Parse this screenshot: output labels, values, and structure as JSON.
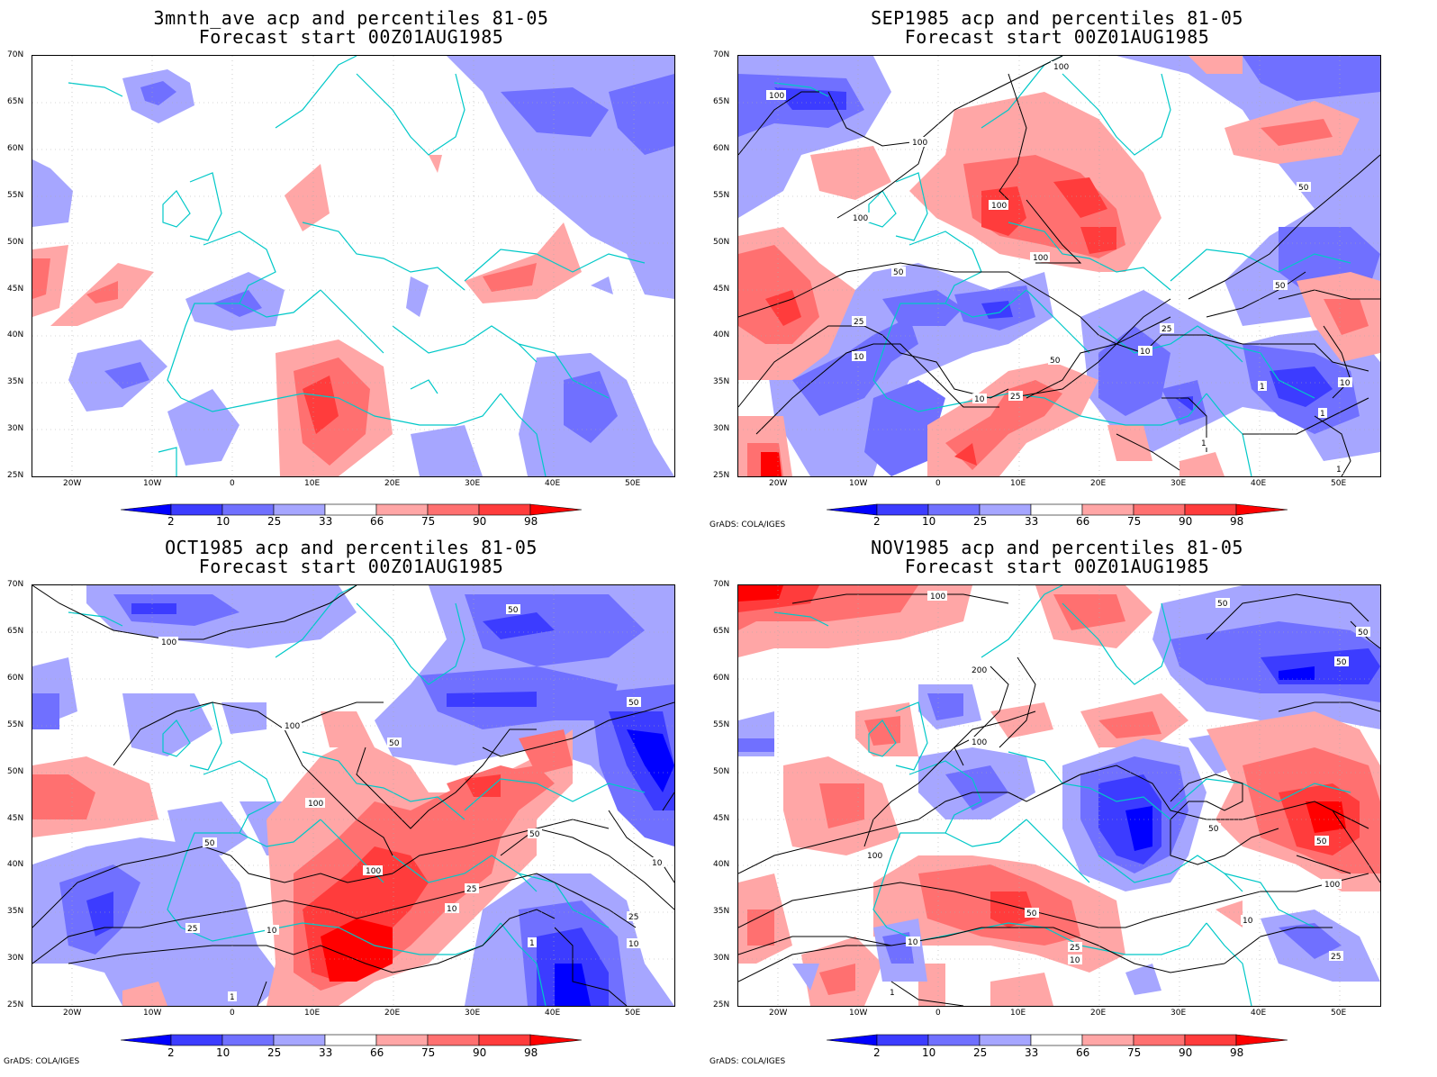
{
  "panels": [
    {
      "title1": "3mnth_ave acp and percentiles 81-05",
      "title2": "Forecast start 00Z01AUG1985",
      "credit": ""
    },
    {
      "title1": "SEP1985 acp and percentiles 81-05",
      "title2": "Forecast start 00Z01AUG1985",
      "credit": "GrADS: COLA/IGES"
    },
    {
      "title1": "OCT1985 acp and percentiles 81-05",
      "title2": "Forecast start 00Z01AUG1985",
      "credit": "GrADS: COLA/IGES"
    },
    {
      "title1": "NOV1985 acp and percentiles 81-05",
      "title2": "Forecast start 00Z01AUG1985",
      "credit": "GrADS: COLA/IGES"
    }
  ],
  "axes": {
    "lat_labels": [
      "70N",
      "65N",
      "60N",
      "55N",
      "50N",
      "45N",
      "40N",
      "35N",
      "30N",
      "25N"
    ],
    "lon_labels": [
      "20W",
      "10W",
      "0",
      "10E",
      "20E",
      "30E",
      "40E",
      "50E"
    ]
  },
  "colorbar": {
    "labels": [
      "2",
      "10",
      "25",
      "33",
      "66",
      "75",
      "90",
      "98"
    ],
    "colors": [
      "#0000ff",
      "#3c3cff",
      "#7070ff",
      "#a6a6ff",
      "#ffffff",
      "#ffa6a6",
      "#ff7070",
      "#ff3c3c",
      "#ff0000"
    ]
  },
  "contours": {
    "sep": [
      "100",
      "100",
      "100",
      "100",
      "100",
      "100",
      "50",
      "50",
      "50",
      "50",
      "25",
      "25",
      "25",
      "10",
      "10",
      "10",
      "10",
      "1",
      "1",
      "1",
      "1"
    ],
    "oct": [
      "100",
      "100",
      "100",
      "100",
      "50",
      "50",
      "50",
      "50",
      "50",
      "25",
      "25",
      "25",
      "10",
      "10",
      "10",
      "10",
      "1",
      "1"
    ],
    "nov": [
      "100",
      "100",
      "100",
      "200",
      "50",
      "50",
      "50",
      "50",
      "50",
      "50",
      "25",
      "25",
      "10",
      "10",
      "10",
      "100",
      "1"
    ]
  },
  "colors": {
    "coast": "#00c8c8",
    "blue_dark": "#2020ff",
    "blue_mid": "#7070ff",
    "blue_light": "#a6a6ff",
    "red_dark": "#ff2020",
    "red_mid": "#ff7070",
    "red_light": "#ffa6a6"
  }
}
